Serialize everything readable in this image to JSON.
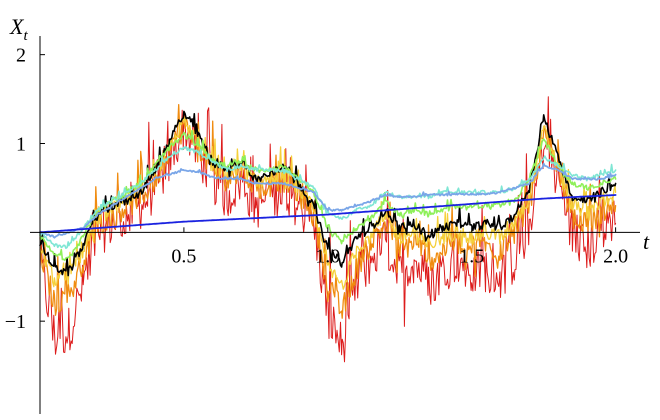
{
  "chart_data": {
    "type": "line",
    "title": "",
    "xlabel": "t",
    "ylabel": "X",
    "ylabel_sub": "t",
    "xlim": [
      0,
      2.05
    ],
    "ylim": [
      -2.0,
      2.3
    ],
    "grid": false,
    "legend": "none",
    "x_ticks": [
      {
        "value": 0.5,
        "label": "0.5"
      },
      {
        "value": 1.0,
        "label": "1.0"
      },
      {
        "value": 1.5,
        "label": "1.5"
      },
      {
        "value": 2.0,
        "label": "2.0"
      }
    ],
    "y_ticks": [
      {
        "value": -1,
        "label": "−1"
      },
      {
        "value": 1,
        "label": "1"
      },
      {
        "value": 2,
        "label": "2"
      }
    ],
    "series": [
      {
        "color": "#dd1c1c",
        "width": 1.0,
        "noise": 0.55,
        "x": [
          0,
          0.05,
          0.1,
          0.15,
          0.2,
          0.25,
          0.3,
          0.35,
          0.4,
          0.45,
          0.5,
          0.55,
          0.6,
          0.65,
          0.7,
          0.75,
          0.8,
          0.85,
          0.9,
          0.95,
          1.0,
          1.05,
          1.1,
          1.15,
          1.2,
          1.25,
          1.3,
          1.35,
          1.4,
          1.45,
          1.5,
          1.55,
          1.6,
          1.65,
          1.7,
          1.75,
          1.8,
          1.85,
          1.9,
          1.95,
          2.0
        ],
        "y": [
          -0.3,
          -1.2,
          -1.1,
          -0.6,
          0.0,
          0.1,
          0.2,
          0.3,
          0.5,
          0.8,
          1.2,
          0.9,
          0.6,
          0.4,
          0.6,
          0.3,
          0.4,
          0.5,
          0.3,
          0.1,
          -0.9,
          -1.3,
          -0.6,
          -0.3,
          -0.1,
          -0.5,
          -0.3,
          -0.6,
          -0.4,
          -0.3,
          -0.5,
          -0.4,
          -0.5,
          -0.3,
          0.1,
          1.0,
          0.6,
          0.0,
          -0.2,
          0.0,
          0.1
        ]
      },
      {
        "color": "#f08c10",
        "width": 1.3,
        "noise": 0.3,
        "x": [
          0,
          0.05,
          0.1,
          0.15,
          0.2,
          0.25,
          0.3,
          0.35,
          0.4,
          0.45,
          0.5,
          0.55,
          0.6,
          0.65,
          0.7,
          0.75,
          0.8,
          0.85,
          0.9,
          0.95,
          1.0,
          1.05,
          1.1,
          1.15,
          1.2,
          1.25,
          1.3,
          1.35,
          1.4,
          1.45,
          1.5,
          1.55,
          1.6,
          1.65,
          1.7,
          1.75,
          1.8,
          1.85,
          1.9,
          1.95,
          2.0
        ],
        "y": [
          -0.2,
          -0.8,
          -0.7,
          -0.3,
          0.1,
          0.2,
          0.3,
          0.4,
          0.6,
          0.9,
          1.2,
          1.0,
          0.7,
          0.6,
          0.7,
          0.5,
          0.55,
          0.6,
          0.45,
          0.2,
          -0.6,
          -0.9,
          -0.4,
          -0.1,
          0.1,
          -0.2,
          -0.1,
          -0.3,
          -0.2,
          -0.1,
          -0.2,
          -0.15,
          -0.2,
          0.0,
          0.3,
          1.1,
          0.7,
          0.2,
          0.1,
          0.2,
          0.3
        ]
      },
      {
        "color": "#f5d03a",
        "width": 1.3,
        "noise": 0.18,
        "x": [
          0,
          0.05,
          0.1,
          0.15,
          0.2,
          0.25,
          0.3,
          0.35,
          0.4,
          0.45,
          0.5,
          0.55,
          0.6,
          0.65,
          0.7,
          0.75,
          0.8,
          0.85,
          0.9,
          0.95,
          1.0,
          1.05,
          1.1,
          1.15,
          1.2,
          1.25,
          1.3,
          1.35,
          1.4,
          1.45,
          1.5,
          1.55,
          1.6,
          1.65,
          1.7,
          1.75,
          1.8,
          1.85,
          1.9,
          1.95,
          2.0
        ],
        "y": [
          -0.15,
          -0.55,
          -0.5,
          -0.2,
          0.15,
          0.25,
          0.35,
          0.45,
          0.65,
          0.95,
          1.25,
          1.0,
          0.75,
          0.65,
          0.75,
          0.55,
          0.6,
          0.65,
          0.5,
          0.25,
          -0.4,
          -0.6,
          -0.2,
          0.0,
          0.15,
          -0.05,
          0.0,
          -0.15,
          -0.05,
          0.0,
          -0.05,
          0.0,
          -0.05,
          0.1,
          0.4,
          1.15,
          0.75,
          0.3,
          0.25,
          0.35,
          0.45
        ]
      },
      {
        "color": "#000000",
        "width": 1.6,
        "noise": 0.1,
        "x": [
          0,
          0.05,
          0.1,
          0.15,
          0.2,
          0.25,
          0.3,
          0.35,
          0.4,
          0.45,
          0.5,
          0.55,
          0.6,
          0.65,
          0.7,
          0.75,
          0.8,
          0.85,
          0.9,
          0.95,
          1.0,
          1.05,
          1.1,
          1.15,
          1.2,
          1.25,
          1.3,
          1.35,
          1.4,
          1.45,
          1.5,
          1.55,
          1.6,
          1.65,
          1.7,
          1.75,
          1.8,
          1.85,
          1.9,
          1.95,
          2.0
        ],
        "y": [
          -0.1,
          -0.4,
          -0.45,
          -0.15,
          0.2,
          0.3,
          0.35,
          0.45,
          0.7,
          1.0,
          1.35,
          1.1,
          0.8,
          0.7,
          0.8,
          0.6,
          0.65,
          0.75,
          0.55,
          0.3,
          -0.2,
          -0.35,
          -0.05,
          0.05,
          0.25,
          0.05,
          0.1,
          -0.05,
          0.05,
          0.1,
          0.05,
          0.1,
          0.05,
          0.2,
          0.5,
          1.3,
          0.85,
          0.4,
          0.35,
          0.45,
          0.55
        ]
      },
      {
        "color": "#8ef05a",
        "width": 1.6,
        "noise": 0.06,
        "x": [
          0,
          0.05,
          0.1,
          0.15,
          0.2,
          0.25,
          0.3,
          0.35,
          0.4,
          0.45,
          0.5,
          0.55,
          0.6,
          0.65,
          0.7,
          0.75,
          0.8,
          0.85,
          0.9,
          0.95,
          1.0,
          1.05,
          1.1,
          1.15,
          1.2,
          1.25,
          1.3,
          1.35,
          1.4,
          1.45,
          1.5,
          1.55,
          1.6,
          1.65,
          1.7,
          1.75,
          1.8,
          1.85,
          1.9,
          1.95,
          2.0
        ],
        "y": [
          -0.05,
          -0.25,
          -0.3,
          -0.05,
          0.25,
          0.35,
          0.45,
          0.55,
          0.75,
          0.95,
          1.1,
          1.0,
          0.8,
          0.75,
          0.8,
          0.7,
          0.7,
          0.75,
          0.6,
          0.45,
          0.05,
          -0.1,
          0.05,
          0.15,
          0.35,
          0.2,
          0.25,
          0.2,
          0.25,
          0.3,
          0.3,
          0.3,
          0.3,
          0.35,
          0.6,
          1.05,
          0.75,
          0.55,
          0.5,
          0.55,
          0.6
        ]
      },
      {
        "color": "#7fe6d4",
        "width": 1.6,
        "noise": 0.04,
        "x": [
          0,
          0.05,
          0.1,
          0.15,
          0.2,
          0.25,
          0.3,
          0.35,
          0.4,
          0.45,
          0.5,
          0.55,
          0.6,
          0.65,
          0.7,
          0.75,
          0.8,
          0.85,
          0.9,
          0.95,
          1.0,
          1.05,
          1.1,
          1.15,
          1.2,
          1.25,
          1.3,
          1.35,
          1.4,
          1.45,
          1.5,
          1.55,
          1.6,
          1.65,
          1.7,
          1.75,
          1.8,
          1.85,
          1.9,
          1.95,
          2.0
        ],
        "y": [
          0.0,
          -0.15,
          -0.15,
          0.05,
          0.25,
          0.35,
          0.45,
          0.55,
          0.7,
          0.85,
          0.95,
          0.9,
          0.8,
          0.7,
          0.75,
          0.7,
          0.7,
          0.7,
          0.6,
          0.5,
          0.2,
          0.15,
          0.25,
          0.3,
          0.45,
          0.4,
          0.4,
          0.4,
          0.45,
          0.45,
          0.45,
          0.45,
          0.45,
          0.5,
          0.6,
          0.85,
          0.75,
          0.65,
          0.6,
          0.65,
          0.7
        ]
      },
      {
        "color": "#7aa6e8",
        "width": 1.8,
        "noise": 0.02,
        "x": [
          0,
          0.05,
          0.1,
          0.15,
          0.2,
          0.25,
          0.3,
          0.35,
          0.4,
          0.45,
          0.5,
          0.55,
          0.6,
          0.65,
          0.7,
          0.75,
          0.8,
          0.85,
          0.9,
          0.95,
          1.0,
          1.05,
          1.1,
          1.15,
          1.2,
          1.25,
          1.3,
          1.35,
          1.4,
          1.45,
          1.5,
          1.55,
          1.6,
          1.65,
          1.7,
          1.75,
          1.8,
          1.85,
          1.9,
          1.95,
          2.0
        ],
        "y": [
          0.0,
          -0.05,
          0.0,
          0.05,
          0.2,
          0.3,
          0.4,
          0.5,
          0.6,
          0.65,
          0.7,
          0.68,
          0.62,
          0.6,
          0.6,
          0.55,
          0.55,
          0.55,
          0.5,
          0.45,
          0.25,
          0.25,
          0.3,
          0.35,
          0.42,
          0.4,
          0.4,
          0.42,
          0.42,
          0.43,
          0.43,
          0.43,
          0.45,
          0.5,
          0.55,
          0.75,
          0.7,
          0.6,
          0.6,
          0.6,
          0.65
        ]
      },
      {
        "color": "#1a22e0",
        "width": 1.8,
        "noise": 0.0,
        "x": [
          0,
          0.25,
          0.5,
          0.75,
          1.0,
          1.25,
          1.5,
          1.75,
          2.0
        ],
        "y": [
          0.0,
          0.06,
          0.12,
          0.16,
          0.2,
          0.26,
          0.32,
          0.38,
          0.42
        ]
      }
    ]
  }
}
